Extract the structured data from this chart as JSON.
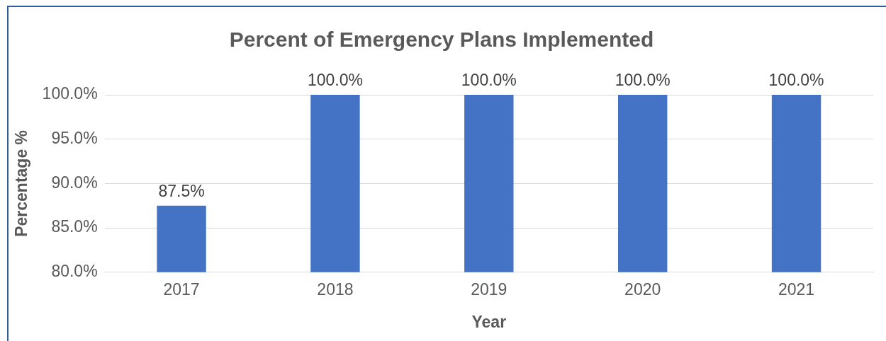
{
  "chart_data": {
    "type": "bar",
    "title": "Percent of Emergency Plans Implemented",
    "xlabel": "Year",
    "ylabel": "Percentage %",
    "categories": [
      "2017",
      "2018",
      "2019",
      "2020",
      "2021"
    ],
    "values": [
      87.5,
      100,
      100,
      100,
      100
    ],
    "color": "#4472c4",
    "value_labels": [
      "87.5%",
      "100.0%",
      "100.0%",
      "100.0%",
      "100.0%"
    ],
    "ylim": [
      80,
      100
    ],
    "yticks": [
      {
        "value": 80,
        "label": "80.0%"
      },
      {
        "value": 85,
        "label": "85.0%"
      },
      {
        "value": 90,
        "label": "90.0%"
      },
      {
        "value": 95,
        "label": "95.0%"
      },
      {
        "value": 100,
        "label": "100.0%"
      }
    ],
    "grid": "y",
    "legend": false
  }
}
